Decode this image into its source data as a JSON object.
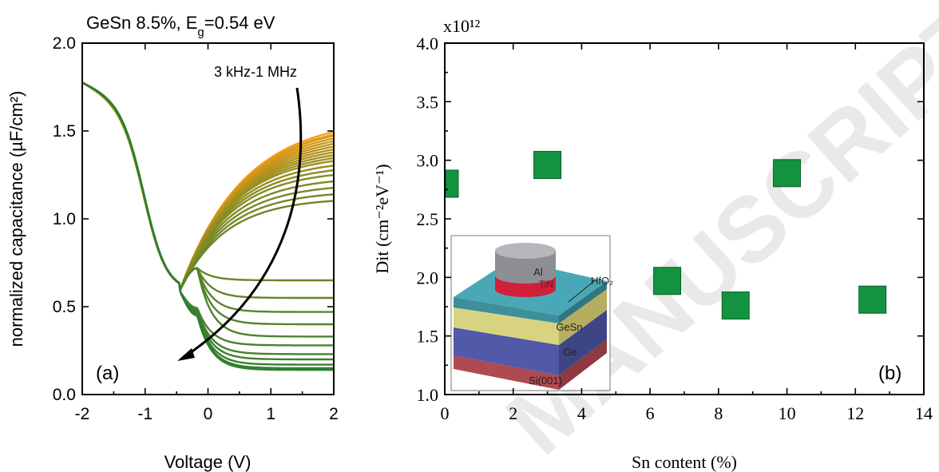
{
  "watermark": "MANUSCRIPT",
  "chart_data": [
    {
      "panel": "(a)",
      "type": "line",
      "title": "GeSn 8.5%, E_g=0.54 eV",
      "title_parts": {
        "prefix": "GeSn 8.5%, E",
        "subscript": "g",
        "suffix": "=0.54 eV"
      },
      "xlabel": "Voltage (V)",
      "ylabel": "normalized capacitance (µF/cm²)",
      "xlim": [
        -2,
        2
      ],
      "ylim": [
        0.0,
        2.0
      ],
      "xticks": [
        "-2",
        "-1",
        "0",
        "1",
        "2"
      ],
      "yticks": [
        "0.0",
        "0.5",
        "1.0",
        "1.5",
        "2.0"
      ],
      "annotation": "3 kHz-1 MHz",
      "frequency_sweep": "3 kHz-1 MHz",
      "curve_count": 30,
      "color_range": [
        "#f39c12",
        "#2e7d32"
      ],
      "series": {
        "accumulation_start": 1.78,
        "accumulation_end": 1.68,
        "min_voltage": -0.45,
        "min_capacitance": 0.59,
        "inversion_plateaus": [
          1.58,
          1.56,
          1.55,
          1.53,
          1.51,
          1.49,
          1.47,
          1.45,
          1.43,
          1.41,
          1.39,
          1.37,
          1.34,
          1.31,
          1.28,
          1.24,
          1.2,
          1.16,
          1.12,
          0.65,
          0.55,
          0.47,
          0.4,
          0.33,
          0.28,
          0.23,
          0.2,
          0.17,
          0.15,
          0.14
        ]
      }
    },
    {
      "panel": "(b)",
      "type": "scatter",
      "xlabel": "Sn content (%)",
      "ylabel": "Dit (cm⁻²eV⁻¹)",
      "multiplier": "x10¹²",
      "xlim": [
        0,
        14
      ],
      "ylim": [
        1.0,
        4.0
      ],
      "xticks": [
        "0",
        "2",
        "4",
        "6",
        "8",
        "10",
        "12",
        "14"
      ],
      "yticks": [
        "1.0",
        "1.5",
        "2.0",
        "2.5",
        "3.0",
        "3.5",
        "4.0"
      ],
      "marker_color": "#13933f",
      "marker": "square",
      "points": [
        {
          "x": 0,
          "y": 2.8
        },
        {
          "x": 3,
          "y": 2.96
        },
        {
          "x": 6.5,
          "y": 1.97
        },
        {
          "x": 8.5,
          "y": 1.76
        },
        {
          "x": 10,
          "y": 2.89
        },
        {
          "x": 12.5,
          "y": 1.81
        }
      ],
      "inset": {
        "layers": [
          "Al",
          "TiN",
          "HfO₂",
          "GeSn",
          "Ge",
          "Si(001)"
        ],
        "colors": {
          "al": "#9c9ea2",
          "tin": "#d0203a",
          "hfo2": "#4aa8b6",
          "gesn": "#d8d380",
          "ge": "#5159a8",
          "si": "#b04a52"
        }
      }
    }
  ]
}
